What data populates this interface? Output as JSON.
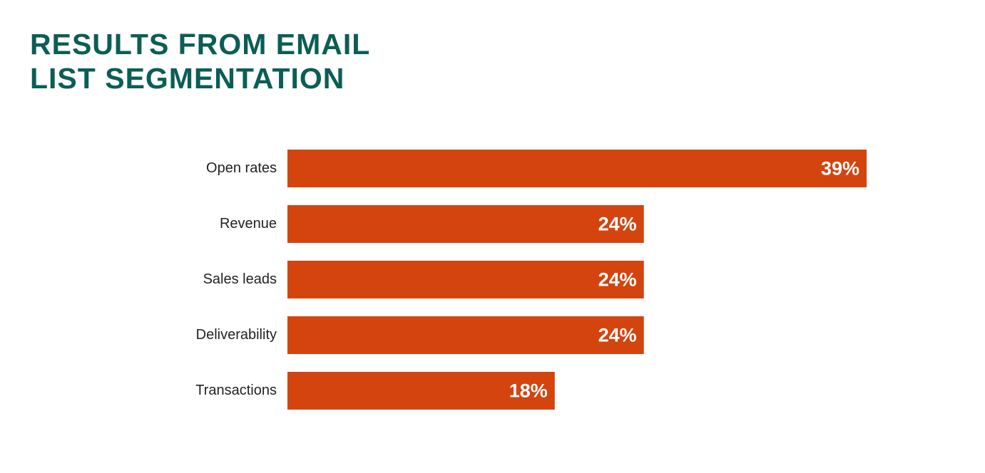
{
  "chart_data": {
    "type": "bar",
    "orientation": "horizontal",
    "title": "RESULTS FROM EMAIL LIST SEGMENTATION",
    "categories": [
      "Open rates",
      "Revenue",
      "Sales leads",
      "Deliverability",
      "Transactions"
    ],
    "values": [
      39,
      24,
      24,
      24,
      18
    ],
    "value_labels": [
      "39%",
      "24%",
      "24%",
      "24%",
      "18%"
    ],
    "color": "#d4440e",
    "title_color": "#0b5e55"
  }
}
